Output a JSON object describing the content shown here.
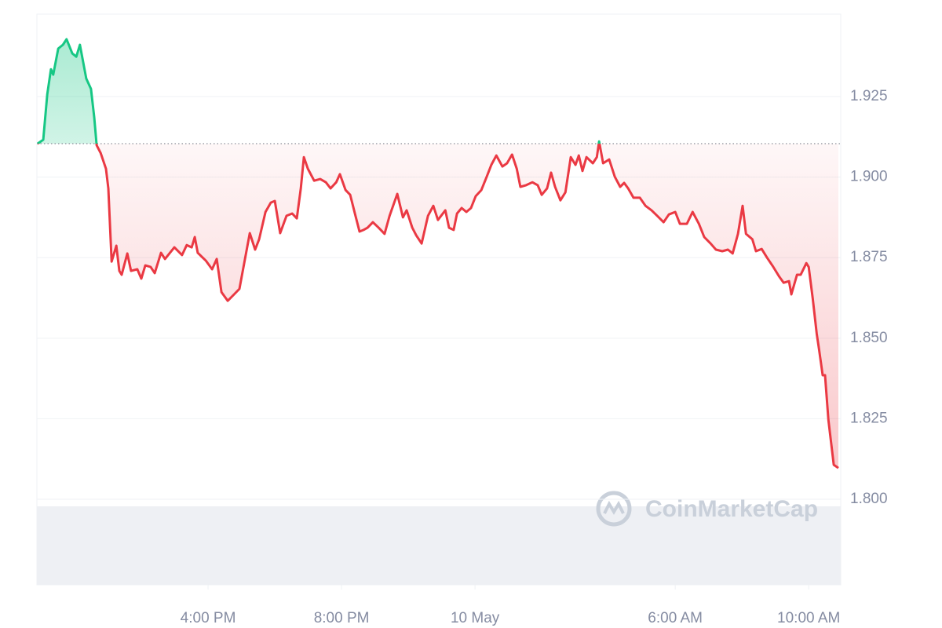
{
  "chart_data": {
    "type": "line",
    "watermark": "CoinMarketCap",
    "x": [
      -13.11,
      -12.94,
      -12.82,
      -12.71,
      -12.64,
      -12.49,
      -12.35,
      -12.24,
      -12.07,
      -11.95,
      -11.84,
      -11.65,
      -11.51,
      -11.41,
      -11.34,
      -11.22,
      -11.06,
      -10.99,
      -10.89,
      -10.75,
      -10.66,
      -10.59,
      -10.42,
      -10.31,
      -10.12,
      -10.0,
      -9.88,
      -9.72,
      -9.6,
      -9.41,
      -9.29,
      -9.01,
      -8.78,
      -8.64,
      -8.49,
      -8.4,
      -8.31,
      -8.07,
      -7.88,
      -7.74,
      -7.6,
      -7.41,
      -7.22,
      -7.06,
      -6.75,
      -6.59,
      -6.47,
      -6.28,
      -6.12,
      -6.0,
      -5.84,
      -5.65,
      -5.48,
      -5.34,
      -5.22,
      -5.13,
      -5.01,
      -4.82,
      -4.64,
      -4.47,
      -4.33,
      -4.16,
      -4.05,
      -3.88,
      -3.74,
      -3.6,
      -3.46,
      -3.34,
      -3.22,
      -3.06,
      -2.89,
      -2.71,
      -2.56,
      -2.33,
      -2.16,
      -2.05,
      -1.88,
      -1.76,
      -1.6,
      -1.41,
      -1.25,
      -1.11,
      -0.89,
      -0.78,
      -0.64,
      -0.54,
      -0.4,
      -0.26,
      -0.12,
      0.02,
      0.19,
      0.35,
      0.49,
      0.64,
      0.82,
      0.96,
      1.11,
      1.25,
      1.36,
      1.53,
      1.72,
      1.88,
      2.0,
      2.16,
      2.28,
      2.4,
      2.56,
      2.71,
      2.87,
      3.01,
      3.11,
      3.22,
      3.34,
      3.53,
      3.65,
      3.72,
      3.84,
      4.02,
      4.19,
      4.35,
      4.47,
      4.59,
      4.75,
      4.94,
      5.11,
      5.29,
      5.46,
      5.65,
      5.81,
      6.0,
      6.14,
      6.35,
      6.52,
      6.71,
      6.87,
      7.06,
      7.22,
      7.41,
      7.58,
      7.72,
      7.88,
      8.02,
      8.12,
      8.31,
      8.42,
      8.59,
      8.75,
      8.94,
      9.11,
      9.25,
      9.41,
      9.48,
      9.65,
      9.76,
      9.93,
      10.0,
      10.12,
      10.24,
      10.31,
      10.42,
      10.49,
      10.59,
      10.75,
      10.89
    ],
    "values": [
      1.9104,
      1.9116,
      1.9257,
      1.9335,
      1.9318,
      1.9399,
      1.9411,
      1.9428,
      1.9384,
      1.9374,
      1.9411,
      1.9306,
      1.9274,
      1.9184,
      1.9099,
      1.9075,
      1.9026,
      1.8965,
      1.8738,
      1.8787,
      1.8709,
      1.8697,
      1.8763,
      1.8709,
      1.8714,
      1.8685,
      1.8726,
      1.8721,
      1.8702,
      1.8765,
      1.8746,
      1.8782,
      1.8758,
      1.8789,
      1.8782,
      1.8814,
      1.8765,
      1.8741,
      1.8714,
      1.8746,
      1.8643,
      1.8616,
      1.8636,
      1.8653,
      1.8826,
      1.8775,
      1.8807,
      1.8892,
      1.8921,
      1.8926,
      1.8826,
      1.888,
      1.8887,
      1.8872,
      1.8965,
      1.9062,
      1.9026,
      1.8989,
      1.8994,
      1.8984,
      1.8965,
      1.8984,
      1.9009,
      1.896,
      1.8945,
      1.8887,
      1.8831,
      1.8836,
      1.8843,
      1.886,
      1.8843,
      1.8824,
      1.888,
      1.8948,
      1.8875,
      1.8897,
      1.8843,
      1.8819,
      1.8794,
      1.888,
      1.8911,
      1.8867,
      1.8897,
      1.8843,
      1.8836,
      1.8887,
      1.8904,
      1.8892,
      1.8904,
      1.8941,
      1.896,
      1.9001,
      1.9038,
      1.9067,
      1.9033,
      1.9043,
      1.907,
      1.9026,
      1.897,
      1.8975,
      1.8984,
      1.8975,
      1.8945,
      1.8965,
      1.9014,
      1.897,
      1.8928,
      1.8953,
      1.9062,
      1.9038,
      1.9067,
      1.9019,
      1.9062,
      1.9043,
      1.9062,
      1.9111,
      1.9043,
      1.9055,
      1.9001,
      1.897,
      1.8982,
      1.8965,
      1.8936,
      1.8936,
      1.8911,
      1.8897,
      1.888,
      1.886,
      1.8884,
      1.8892,
      1.8855,
      1.8855,
      1.8892,
      1.8855,
      1.8814,
      1.8794,
      1.8775,
      1.877,
      1.8775,
      1.8763,
      1.8824,
      1.8911,
      1.8824,
      1.8807,
      1.877,
      1.8777,
      1.875,
      1.8721,
      1.8692,
      1.8672,
      1.8677,
      1.8636,
      1.8697,
      1.8697,
      1.8733,
      1.8721,
      1.8624,
      1.8514,
      1.8465,
      1.8385,
      1.8385,
      1.8246,
      1.8107,
      1.8097
    ],
    "baseline": 1.9104,
    "up_color": "#16c784",
    "down_color": "#ea3943",
    "xlim": [
      -13.13,
      10.96
    ],
    "ylim": [
      1.8,
      1.9506
    ],
    "xticks": [
      {
        "value": -8,
        "label": "4:00 PM"
      },
      {
        "value": -4,
        "label": "8:00 PM"
      },
      {
        "value": 0,
        "label": "10 May"
      },
      {
        "value": 6,
        "label": "6:00 AM"
      },
      {
        "value": 10,
        "label": "10:00 AM"
      }
    ],
    "yticks": [
      {
        "value": 1.8,
        "label": "1.800"
      },
      1.825,
      {
        "value": 1.85,
        "label": "1.850"
      },
      1.875,
      {
        "value": 1.9,
        "label": "1.900"
      },
      1.925
    ],
    "grid": true
  }
}
